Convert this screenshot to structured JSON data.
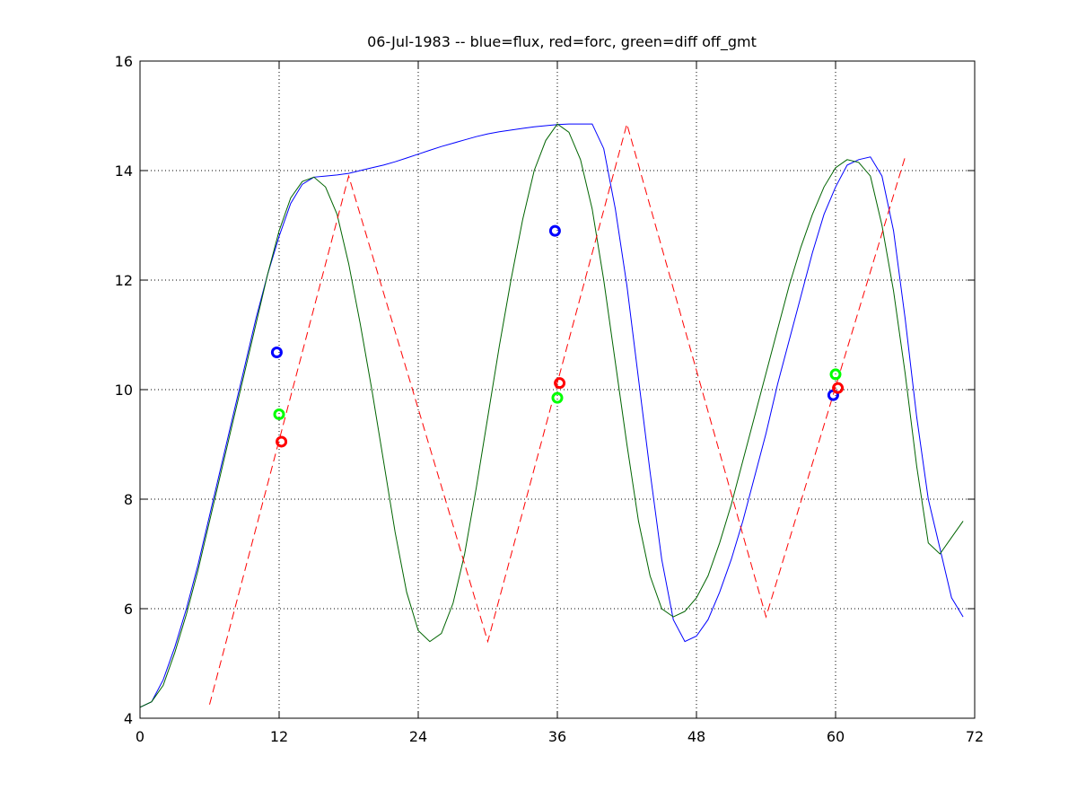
{
  "chart_data": {
    "type": "line",
    "title": "06-Jul-1983 -- blue=flux, red=forc, green=diff off_gmt",
    "xlabel": "",
    "ylabel": "",
    "xlim": [
      0,
      72
    ],
    "ylim": [
      4,
      16
    ],
    "xticks": [
      0,
      12,
      24,
      36,
      48,
      60,
      72
    ],
    "yticks": [
      4,
      6,
      8,
      10,
      12,
      14,
      16
    ],
    "grid": true,
    "series": [
      {
        "color": "#0000ff",
        "style": "solid",
        "x": [
          0,
          1,
          2,
          3,
          4,
          5,
          6,
          7,
          8,
          9,
          10,
          11,
          12,
          13,
          14,
          15,
          16,
          17,
          18,
          19,
          20,
          21,
          22,
          23,
          24,
          25,
          26,
          27,
          28,
          29,
          30,
          31,
          32,
          33,
          34,
          35,
          36,
          37,
          38,
          39,
          40,
          41,
          42,
          43,
          44,
          45,
          46,
          47,
          48,
          49,
          50,
          51,
          52,
          53,
          54,
          55,
          56,
          57,
          58,
          59,
          60,
          61,
          62,
          63,
          64,
          65,
          66,
          67,
          68,
          69,
          70,
          71
        ],
        "y": [
          4.2,
          4.3,
          4.7,
          5.3,
          6.0,
          6.8,
          7.7,
          8.6,
          9.5,
          10.4,
          11.3,
          12.1,
          12.8,
          13.4,
          13.75,
          13.88,
          13.9,
          13.92,
          13.95,
          14.0,
          14.05,
          14.1,
          14.16,
          14.23,
          14.3,
          14.37,
          14.44,
          14.5,
          14.56,
          14.62,
          14.67,
          14.71,
          14.74,
          14.77,
          14.8,
          14.82,
          14.84,
          14.85,
          14.85,
          14.85,
          14.4,
          13.3,
          11.9,
          10.2,
          8.5,
          6.9,
          5.8,
          5.4,
          5.5,
          5.8,
          6.3,
          6.9,
          7.6,
          8.4,
          9.2,
          10.1,
          10.9,
          11.7,
          12.5,
          13.2,
          13.7,
          14.1,
          14.2,
          14.25,
          13.9,
          12.9,
          11.3,
          9.5,
          8.0,
          7.1,
          6.2,
          5.85
        ]
      },
      {
        "color": "#006400",
        "style": "solid",
        "x": [
          0,
          1,
          2,
          3,
          4,
          5,
          6,
          7,
          8,
          9,
          10,
          11,
          12,
          13,
          14,
          15,
          16,
          17,
          18,
          19,
          20,
          21,
          22,
          23,
          24,
          25,
          26,
          27,
          28,
          29,
          30,
          31,
          32,
          33,
          34,
          35,
          36,
          37,
          38,
          39,
          40,
          41,
          42,
          43,
          44,
          45,
          46,
          47,
          48,
          49,
          50,
          51,
          52,
          53,
          54,
          55,
          56,
          57,
          58,
          59,
          60,
          61,
          62,
          63,
          64,
          65,
          66,
          67,
          68,
          69,
          70,
          71
        ],
        "y": [
          4.2,
          4.3,
          4.6,
          5.2,
          5.9,
          6.7,
          7.6,
          8.5,
          9.4,
          10.3,
          11.2,
          12.1,
          12.9,
          13.5,
          13.8,
          13.88,
          13.7,
          13.2,
          12.3,
          11.2,
          10.0,
          8.7,
          7.4,
          6.3,
          5.6,
          5.4,
          5.55,
          6.1,
          7.0,
          8.2,
          9.5,
          10.8,
          12.0,
          13.1,
          14.0,
          14.55,
          14.85,
          14.7,
          14.2,
          13.3,
          12.0,
          10.5,
          9.0,
          7.6,
          6.6,
          6.0,
          5.85,
          5.95,
          6.2,
          6.6,
          7.2,
          7.9,
          8.7,
          9.5,
          10.3,
          11.1,
          11.9,
          12.6,
          13.2,
          13.7,
          14.05,
          14.2,
          14.15,
          13.9,
          13.0,
          11.8,
          10.3,
          8.6,
          7.2,
          7.0,
          7.3,
          7.6
        ]
      },
      {
        "color": "#ff0000",
        "style": "dashed",
        "x": [
          6,
          18,
          30,
          42,
          54,
          66
        ],
        "y": [
          4.25,
          13.9,
          5.4,
          14.85,
          5.85,
          14.25
        ]
      }
    ],
    "markers": [
      {
        "x": 11.8,
        "y": 10.68,
        "color": "#0000ff"
      },
      {
        "x": 12.0,
        "y": 9.55,
        "color": "#00ff00"
      },
      {
        "x": 12.2,
        "y": 9.05,
        "color": "#ff0000"
      },
      {
        "x": 35.8,
        "y": 12.9,
        "color": "#0000ff"
      },
      {
        "x": 36.0,
        "y": 9.85,
        "color": "#00ff00"
      },
      {
        "x": 36.2,
        "y": 10.12,
        "color": "#ff0000"
      },
      {
        "x": 59.8,
        "y": 9.9,
        "color": "#0000ff"
      },
      {
        "x": 60.0,
        "y": 10.28,
        "color": "#00ff00"
      },
      {
        "x": 60.2,
        "y": 10.03,
        "color": "#ff0000"
      }
    ]
  }
}
